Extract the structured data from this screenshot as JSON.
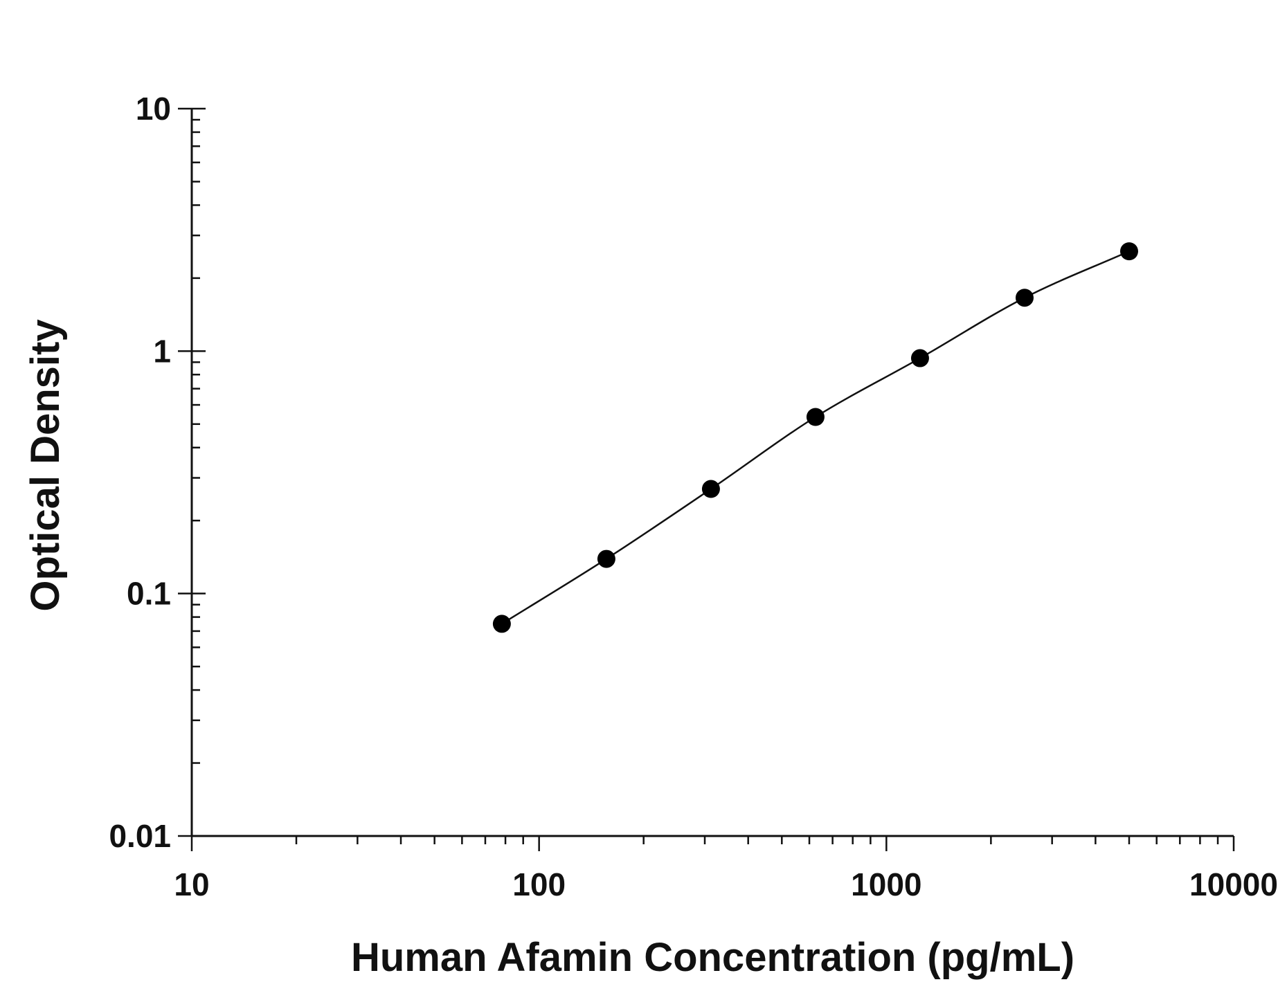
{
  "chart_data": {
    "type": "scatter",
    "title": "",
    "xlabel": "Human Afamin Concentration (pg/mL)",
    "ylabel": "Optical Density",
    "x_scale": "log",
    "y_scale": "log",
    "xlim": [
      10,
      10000
    ],
    "ylim": [
      0.01,
      10
    ],
    "x_ticks": [
      10,
      100,
      1000,
      10000
    ],
    "x_tick_labels": [
      "10",
      "100",
      "1000",
      "10000"
    ],
    "y_ticks": [
      0.01,
      0.1,
      1,
      10
    ],
    "y_tick_labels": [
      "0.01",
      "0.1",
      "1",
      "10"
    ],
    "grid": false,
    "legend": "none",
    "series": [
      {
        "x": [
          78.125,
          156.25,
          312.5,
          625,
          1250,
          2500,
          5000
        ],
        "y": [
          0.075,
          0.139,
          0.27,
          0.535,
          0.935,
          1.66,
          2.58
        ],
        "marker": "filled-circle",
        "fit_curve": true,
        "color": "#000000"
      }
    ]
  }
}
